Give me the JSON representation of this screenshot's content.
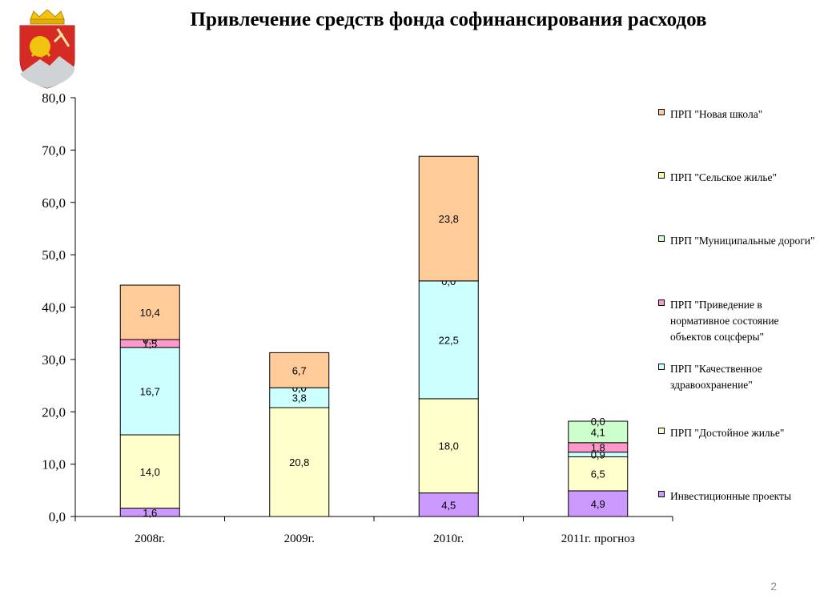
{
  "header": {
    "title": "Привлечение средств фонда софинансирования расходов"
  },
  "footer": {
    "page_number": "2"
  },
  "chart_data": {
    "type": "bar",
    "stacked": true,
    "categories": [
      "2008г.",
      "2009г.",
      "2010г.",
      "2011г. прогноз"
    ],
    "ylim": [
      0,
      80
    ],
    "yticks": [
      "0,0",
      "10,0",
      "20,0",
      "30,0",
      "40,0",
      "50,0",
      "60,0",
      "70,0",
      "80,0"
    ],
    "grid": false,
    "legend_position": "right",
    "series": [
      {
        "name": "Инвестиционные проекты",
        "color": "#cc99ff",
        "values": [
          1.6,
          0,
          4.5,
          4.9
        ],
        "labels": [
          "1,6",
          "",
          "4,5",
          "4,9"
        ]
      },
      {
        "name": "ПРП \"Достойное жилье\"",
        "color": "#ffffcc",
        "values": [
          14.0,
          20.8,
          18.0,
          6.5
        ],
        "labels": [
          "14,0",
          "20,8",
          "18,0",
          "6,5"
        ]
      },
      {
        "name": "ПРП \"Качественное здравоохранение\"",
        "color": "#ccffff",
        "values": [
          16.7,
          3.8,
          22.5,
          0.9
        ],
        "labels": [
          "16,7",
          "3,8",
          "22,5",
          "0,9"
        ]
      },
      {
        "name": "ПРП \"Приведение в нормативное состояние объектов соцсферы\"",
        "color": "#ff99cc",
        "values": [
          1.5,
          0.0,
          0.0,
          1.8
        ],
        "labels": [
          "1,5",
          "0,0",
          "",
          "1,8"
        ]
      },
      {
        "name": "ПРП \"Муниципальные дороги\"",
        "color": "#ccffcc",
        "values": [
          0.0,
          0.0,
          0.0,
          4.1
        ],
        "labels": [
          "0,0",
          "0,0",
          "0,0",
          "4,1"
        ]
      },
      {
        "name": "ПРП \"Сельское жилье\"",
        "color": "#ffff99",
        "values": [
          0,
          0,
          0,
          0.0
        ],
        "labels": [
          "",
          "",
          "",
          "0,0"
        ]
      },
      {
        "name": "ПРП \"Новая школа\"",
        "color": "#ffcc99",
        "values": [
          10.4,
          6.7,
          23.8,
          0
        ],
        "labels": [
          "10,4",
          "6,7",
          "23,8",
          ""
        ]
      }
    ],
    "legend": [
      {
        "label": "ПРП \"Новая школа\"",
        "color": "#ffcc99"
      },
      {
        "label": "ПРП \"Сельское жилье\"",
        "color": "#ffff99"
      },
      {
        "label": "ПРП \"Муниципальные дороги\"",
        "color": "#ccffcc"
      },
      {
        "label": "ПРП \"Приведение в нормативное состояние объектов соцсферы\"",
        "color": "#ff99cc"
      },
      {
        "label": "ПРП \"Качественное здравоохранение\"",
        "color": "#ccffff"
      },
      {
        "label": "ПРП \"Достойное жилье\"",
        "color": "#ffffcc"
      },
      {
        "label": "Инвестиционные проекты",
        "color": "#cc99ff"
      }
    ]
  }
}
